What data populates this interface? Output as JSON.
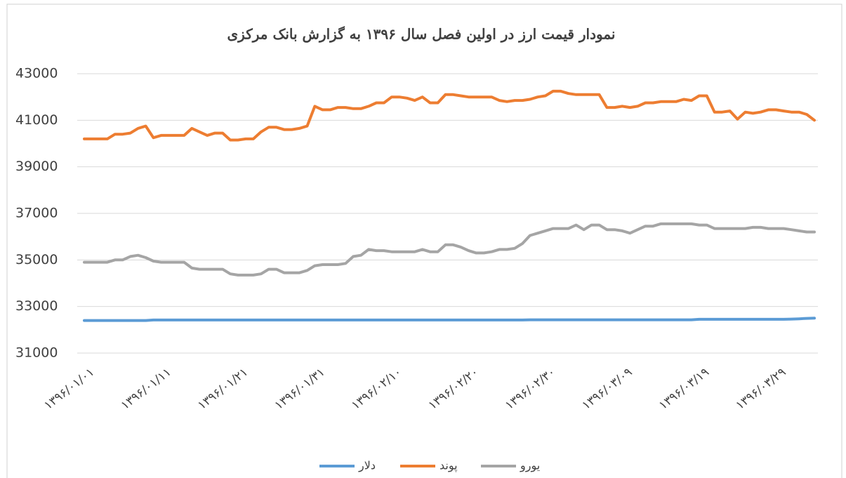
{
  "chart_data": {
    "type": "line",
    "title": "نمودار قیمت ارز در اولین فصل سال ۱۳۹۶ به گزارش بانک مرکزی",
    "categories": [
      "۱۳۹۶/۰۱/۰۱",
      null,
      null,
      null,
      null,
      null,
      null,
      null,
      null,
      null,
      "۱۳۹۶/۰۱/۱۱",
      null,
      null,
      null,
      null,
      null,
      null,
      null,
      null,
      null,
      "۱۳۹۶/۰۱/۲۱",
      null,
      null,
      null,
      null,
      null,
      null,
      null,
      null,
      null,
      "۱۳۹۶/۰۱/۳۱",
      null,
      null,
      null,
      null,
      null,
      null,
      null,
      null,
      null,
      "۱۳۹۶/۰۲/۱۰",
      null,
      null,
      null,
      null,
      null,
      null,
      null,
      null,
      null,
      "۱۳۹۶/۰۲/۲۰",
      null,
      null,
      null,
      null,
      null,
      null,
      null,
      null,
      null,
      "۱۳۹۶/۰۲/۳۰",
      null,
      null,
      null,
      null,
      null,
      null,
      null,
      null,
      null,
      "۱۳۹۶/۰۳/۰۹",
      null,
      null,
      null,
      null,
      null,
      null,
      null,
      null,
      null,
      "۱۳۹۶/۰۳/۱۹",
      null,
      null,
      null,
      null,
      null,
      null,
      null,
      null,
      null,
      "۱۳۹۶/۰۳/۲۹",
      null,
      null,
      null,
      null,
      null
    ],
    "series": [
      {
        "name": "دلار",
        "color": "#5b9bd5",
        "values": [
          32400,
          32400,
          32400,
          32400,
          32400,
          32400,
          32400,
          32400,
          32400,
          32420,
          32420,
          32420,
          32420,
          32420,
          32420,
          32420,
          32420,
          32420,
          32420,
          32420,
          32420,
          32420,
          32420,
          32420,
          32420,
          32420,
          32420,
          32420,
          32420,
          32420,
          32420,
          32420,
          32420,
          32420,
          32420,
          32420,
          32420,
          32420,
          32420,
          32420,
          32420,
          32420,
          32420,
          32420,
          32420,
          32420,
          32420,
          32420,
          32420,
          32420,
          32420,
          32420,
          32420,
          32420,
          32420,
          32420,
          32420,
          32420,
          32430,
          32430,
          32430,
          32430,
          32430,
          32430,
          32430,
          32430,
          32430,
          32430,
          32430,
          32430,
          32430,
          32430,
          32430,
          32430,
          32430,
          32430,
          32430,
          32430,
          32430,
          32430,
          32450,
          32450,
          32450,
          32450,
          32450,
          32450,
          32450,
          32450,
          32450,
          32450,
          32450,
          32450,
          32460,
          32470,
          32490,
          32500
        ]
      },
      {
        "name": "پوند",
        "color": "#ed7d31",
        "values": [
          40200,
          40200,
          40200,
          40200,
          40400,
          40400,
          40450,
          40650,
          40750,
          40250,
          40350,
          40350,
          40350,
          40350,
          40650,
          40500,
          40350,
          40450,
          40450,
          40150,
          40150,
          40200,
          40200,
          40500,
          40700,
          40700,
          40600,
          40600,
          40650,
          40750,
          41600,
          41450,
          41450,
          41550,
          41550,
          41500,
          41500,
          41600,
          41750,
          41750,
          42000,
          42000,
          41950,
          41850,
          42000,
          41750,
          41750,
          42100,
          42100,
          42050,
          42000,
          42000,
          42000,
          42000,
          41850,
          41800,
          41850,
          41850,
          41900,
          42000,
          42050,
          42250,
          42250,
          42150,
          42100,
          42100,
          42100,
          42100,
          41550,
          41550,
          41600,
          41550,
          41600,
          41750,
          41750,
          41800,
          41800,
          41800,
          41900,
          41850,
          42050,
          42050,
          41350,
          41350,
          41400,
          41050,
          41350,
          41300,
          41350,
          41450,
          41450,
          41400,
          41350,
          41350,
          41250,
          41000
        ]
      },
      {
        "name": "یورو",
        "color": "#a5a5a5",
        "values": [
          34900,
          34900,
          34900,
          34900,
          35000,
          35000,
          35150,
          35200,
          35100,
          34950,
          34900,
          34900,
          34900,
          34900,
          34650,
          34600,
          34600,
          34600,
          34600,
          34400,
          34350,
          34350,
          34350,
          34400,
          34600,
          34600,
          34450,
          34450,
          34450,
          34550,
          34750,
          34800,
          34800,
          34800,
          34850,
          35150,
          35200,
          35450,
          35400,
          35400,
          35350,
          35350,
          35350,
          35350,
          35450,
          35350,
          35350,
          35650,
          35650,
          35550,
          35400,
          35300,
          35300,
          35350,
          35450,
          35450,
          35500,
          35700,
          36050,
          36150,
          36250,
          36350,
          36350,
          36350,
          36500,
          36300,
          36500,
          36500,
          36300,
          36300,
          36250,
          36150,
          36300,
          36450,
          36450,
          36550,
          36550,
          36550,
          36550,
          36550,
          36500,
          36500,
          36350,
          36350,
          36350,
          36350,
          36350,
          36400,
          36400,
          36350,
          36350,
          36350,
          36300,
          36250,
          36200,
          36200
        ]
      }
    ],
    "ylim": [
      31000,
      43000
    ],
    "yticks": [
      31000,
      33000,
      35000,
      37000,
      39000,
      41000,
      43000
    ],
    "grid": true,
    "legend": "bottom"
  }
}
